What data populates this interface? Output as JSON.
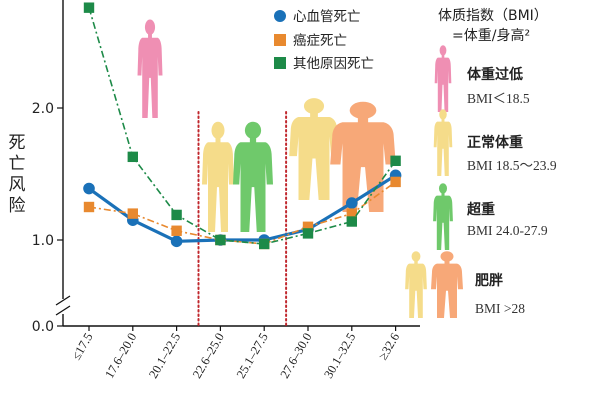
{
  "chart_data": {
    "type": "line",
    "title": "",
    "ylabel": "死亡风险",
    "categories": [
      "≤17.5",
      "17.6–20.0",
      "20.1–22.5",
      "22.6–25.0",
      "25.1–27.5",
      "27.6–30.0",
      "30.1–32.5",
      "≥32.6"
    ],
    "y_ticks": [
      "0.0",
      "1.0",
      "2.0"
    ],
    "ylim": [
      0.0,
      2.9
    ],
    "y_axis_break": true,
    "grid": false,
    "legend_position": "top-center",
    "reference_lines": {
      "style": "dotted",
      "color": "#c0272d",
      "between_categories": [
        [
          2,
          3
        ],
        [
          4,
          5
        ]
      ]
    },
    "series": [
      {
        "name": "心血管死亡",
        "color": "#1a71b8",
        "marker": "circle",
        "line": "solid",
        "points": [
          [
            0,
            1.39
          ],
          [
            1,
            1.15
          ],
          [
            2,
            0.99
          ],
          [
            3,
            1.0
          ],
          [
            4,
            1.0
          ],
          [
            5,
            1.08
          ],
          [
            6,
            1.28
          ],
          [
            7,
            1.49
          ]
        ]
      },
      {
        "name": "癌症死亡",
        "color": "#e8892f",
        "marker": "square",
        "line": "dash-dot",
        "points": [
          [
            0,
            1.25
          ],
          [
            1,
            1.2
          ],
          [
            2,
            1.07
          ],
          [
            3,
            1.0
          ],
          [
            4,
            0.97
          ],
          [
            5,
            1.1
          ],
          [
            6,
            1.2
          ],
          [
            7,
            1.44
          ]
        ]
      },
      {
        "name": "其他原因死亡",
        "color": "#1d8a48",
        "marker": "square",
        "line": "dash-dot",
        "points": [
          [
            0,
            2.76
          ],
          [
            1,
            1.63
          ],
          [
            2,
            1.19
          ],
          [
            3,
            1.0
          ],
          [
            4,
            0.97
          ],
          [
            5,
            1.05
          ],
          [
            6,
            1.14
          ],
          [
            7,
            1.6
          ]
        ]
      }
    ]
  },
  "bmi_key": {
    "heading": "体质指数（BMI）",
    "formula": "=体重/身高²",
    "categories": [
      {
        "name": "体重过低",
        "range": "BMI＜18.5",
        "color": "#ef8fb3"
      },
      {
        "name": "正常体重",
        "range": "BMI 18.5～23.9",
        "color": "#f5dc8a"
      },
      {
        "name": "超重",
        "range": "BMI 24.0-27.9",
        "color": "#6fc96b"
      },
      {
        "name": "肥胖",
        "range": "BMI >28",
        "color": "#f7a878"
      }
    ]
  },
  "figure_icons": {
    "underweight": "slim-person-icon",
    "normal": "normal-person-icon",
    "overweight": "overweight-person-icon",
    "obese": "obese-person-icon"
  }
}
